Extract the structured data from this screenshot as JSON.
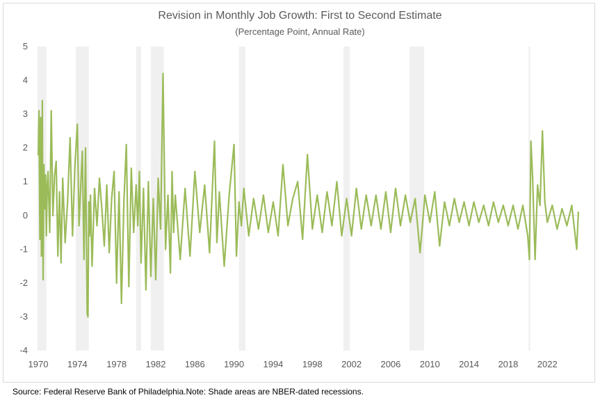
{
  "chart_data": {
    "type": "line",
    "title": "Revision in Monthly Job Growth: First to Second Estimate",
    "subtitle": "(Percentage Point, Annual Rate)",
    "xlabel": "",
    "ylabel": "",
    "xlim": [
      1970,
      2025.25
    ],
    "ylim": [
      -4,
      5
    ],
    "y_ticks": [
      5,
      4,
      3,
      2,
      1,
      0,
      -1,
      -2,
      -3,
      -4
    ],
    "x_ticks": [
      1970,
      1974,
      1978,
      1982,
      1986,
      1990,
      1994,
      1998,
      2002,
      2006,
      2010,
      2014,
      2018,
      2022
    ],
    "grid": false,
    "legend": "none",
    "series_color": "#9bbb59",
    "recession_color": "#f0f0f0",
    "recessions": [
      {
        "start": 1969.92,
        "end": 1970.83
      },
      {
        "start": 1973.83,
        "end": 1975.17
      },
      {
        "start": 1980.0,
        "end": 1980.5
      },
      {
        "start": 1981.5,
        "end": 1982.83
      },
      {
        "start": 1990.5,
        "end": 1991.17
      },
      {
        "start": 2001.17,
        "end": 2001.83
      },
      {
        "start": 2007.92,
        "end": 2009.42
      },
      {
        "start": 2020.08,
        "end": 2020.25
      }
    ],
    "series": [
      {
        "name": "Revision (first to second estimate)",
        "x": [
          1970.0,
          1970.08,
          1970.17,
          1970.25,
          1970.33,
          1970.42,
          1970.5,
          1970.58,
          1970.67,
          1970.75,
          1970.83,
          1970.92,
          1971.0,
          1971.17,
          1971.33,
          1971.5,
          1971.67,
          1971.83,
          1972.0,
          1972.17,
          1972.33,
          1972.5,
          1972.75,
          1973.0,
          1973.25,
          1973.5,
          1973.75,
          1974.0,
          1974.17,
          1974.33,
          1974.5,
          1974.67,
          1974.83,
          1975.0,
          1975.08,
          1975.17,
          1975.25,
          1975.33,
          1975.5,
          1975.75,
          1976.0,
          1976.25,
          1976.5,
          1976.75,
          1977.0,
          1977.25,
          1977.5,
          1977.75,
          1978.0,
          1978.25,
          1978.5,
          1978.75,
          1979.0,
          1979.25,
          1979.5,
          1979.75,
          1980.0,
          1980.17,
          1980.33,
          1980.5,
          1980.75,
          1981.0,
          1981.25,
          1981.5,
          1981.75,
          1982.0,
          1982.25,
          1982.5,
          1982.75,
          1983.0,
          1983.25,
          1983.5,
          1983.67,
          1983.83,
          1984.0,
          1984.5,
          1985.0,
          1985.5,
          1986.0,
          1986.5,
          1987.0,
          1987.5,
          1988.0,
          1988.25,
          1988.5,
          1989.0,
          1989.5,
          1990.0,
          1990.25,
          1990.5,
          1990.75,
          1991.0,
          1991.5,
          1992.0,
          1992.5,
          1993.0,
          1993.5,
          1994.0,
          1994.5,
          1995.0,
          1995.5,
          1996.0,
          1996.5,
          1997.0,
          1997.5,
          1998.0,
          1998.5,
          1999.0,
          1999.5,
          2000.0,
          2000.5,
          2001.0,
          2001.5,
          2002.0,
          2002.5,
          2003.0,
          2003.5,
          2004.0,
          2004.5,
          2005.0,
          2005.5,
          2006.0,
          2006.5,
          2007.0,
          2007.5,
          2008.0,
          2008.5,
          2009.0,
          2009.5,
          2010.0,
          2010.5,
          2011.0,
          2011.5,
          2012.0,
          2012.5,
          2013.0,
          2013.5,
          2014.0,
          2014.5,
          2015.0,
          2015.5,
          2016.0,
          2016.5,
          2017.0,
          2017.5,
          2018.0,
          2018.5,
          2019.0,
          2019.5,
          2020.0,
          2020.17,
          2020.33,
          2020.5,
          2020.75,
          2021.0,
          2021.25,
          2021.5,
          2021.75,
          2022.0,
          2022.5,
          2023.0,
          2023.5,
          2024.0,
          2024.5,
          2025.0,
          2025.17
        ],
        "y": [
          1.8,
          3.1,
          -0.7,
          2.9,
          -1.2,
          3.4,
          -1.9,
          1.5,
          0.2,
          1.2,
          -0.6,
          0.9,
          1.3,
          -0.5,
          3.1,
          0.0,
          1.2,
          1.6,
          -1.2,
          0.7,
          -1.4,
          1.1,
          -0.8,
          0.4,
          2.3,
          -0.6,
          1.5,
          2.7,
          -0.3,
          0.8,
          1.9,
          -1.3,
          2.0,
          -2.9,
          -3.0,
          0.4,
          -0.6,
          0.6,
          -1.5,
          0.8,
          -0.3,
          1.1,
          0.2,
          -0.9,
          0.9,
          -1.1,
          0.5,
          1.3,
          -2.0,
          0.7,
          -2.6,
          0.4,
          2.1,
          -2.1,
          1.4,
          -0.5,
          0.9,
          -0.3,
          1.3,
          -1.4,
          0.8,
          -2.2,
          1.0,
          -1.8,
          0.5,
          -1.9,
          1.1,
          -0.4,
          4.2,
          -1.0,
          0.6,
          -1.7,
          1.3,
          -0.5,
          0.6,
          -1.3,
          0.8,
          -1.2,
          1.3,
          -0.5,
          0.9,
          -1.1,
          2.2,
          -0.8,
          0.7,
          -1.5,
          0.6,
          2.1,
          -1.2,
          0.4,
          -0.3,
          0.8,
          -0.6,
          0.5,
          -0.4,
          0.6,
          -0.5,
          0.4,
          -0.6,
          1.5,
          -0.3,
          0.5,
          1.0,
          -0.7,
          1.8,
          -0.4,
          0.6,
          -0.5,
          0.7,
          -0.3,
          1.0,
          -0.6,
          0.5,
          -0.6,
          0.8,
          -0.4,
          0.6,
          -0.3,
          0.6,
          -0.4,
          0.7,
          -0.5,
          0.8,
          -0.3,
          0.6,
          -0.2,
          0.5,
          -1.1,
          0.6,
          -0.2,
          0.7,
          -0.9,
          0.4,
          -0.3,
          0.5,
          -0.2,
          0.4,
          -0.3,
          0.4,
          -0.2,
          0.3,
          -0.3,
          0.4,
          -0.2,
          0.3,
          -0.3,
          0.3,
          -0.4,
          0.3,
          -0.6,
          -1.3,
          2.2,
          1.1,
          -1.3,
          0.9,
          0.3,
          2.5,
          0.4,
          -0.2,
          0.3,
          -0.4,
          0.2,
          -0.3,
          0.3,
          -1.0,
          0.1
        ]
      }
    ]
  },
  "source_note": "Source: Federal Reserve Bank of Philadelphia.Note: Shade areas are NBER-dated recessions."
}
